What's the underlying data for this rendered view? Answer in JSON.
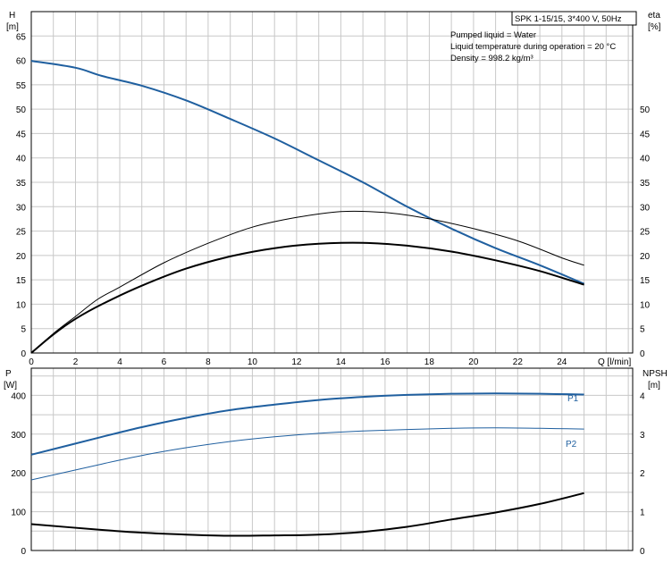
{
  "chart_data": [
    {
      "type": "line",
      "title": "SPK 1-15/15, 3*400 V, 50Hz",
      "info_lines": [
        "Pumped liquid = Water",
        "Liquid temperature during operation = 20 °C",
        "Density = 998.2 kg/m³"
      ],
      "xlabel": "Q [l/min]",
      "ylabel_left": "H",
      "ylabel_left_unit": "[m]",
      "ylabel_right": "eta",
      "ylabel_right_unit": "[%]",
      "xlim": [
        0,
        27.2
      ],
      "ylim": [
        0,
        70
      ],
      "x_ticks": [
        "0",
        "2",
        "4",
        "6",
        "8",
        "10",
        "12",
        "14",
        "16",
        "18",
        "20",
        "22",
        "24"
      ],
      "y_ticks_left": [
        "0",
        "5",
        "10",
        "15",
        "20",
        "25",
        "30",
        "35",
        "40",
        "45",
        "50",
        "55",
        "60",
        "65"
      ],
      "y_ticks_right": [
        "0",
        "5",
        "10",
        "15",
        "20",
        "25",
        "30",
        "35",
        "40",
        "45",
        "50"
      ],
      "grid": true,
      "series": [
        {
          "axis": "left",
          "color": "#1f5f9f",
          "x": [
            0,
            2,
            3.2,
            5,
            7,
            9,
            11,
            13,
            15,
            17,
            19,
            21,
            23,
            25
          ],
          "y": [
            59.9,
            58.5,
            56.8,
            54.8,
            51.8,
            48.0,
            44.0,
            39.5,
            35.0,
            30.0,
            25.5,
            21.5,
            18.0,
            14.2
          ]
        },
        {
          "axis": "right",
          "color": "#000000",
          "x": [
            0,
            1,
            2,
            3,
            4,
            6,
            8,
            10,
            12,
            14,
            16,
            18,
            20,
            22,
            24,
            25
          ],
          "y": [
            0,
            4.0,
            7.5,
            11.0,
            13.5,
            18.5,
            22.5,
            25.8,
            27.8,
            29.0,
            28.8,
            27.5,
            25.5,
            23.0,
            19.5,
            18.0
          ]
        },
        {
          "axis": "right",
          "color": "#000000",
          "x": [
            0,
            1,
            2,
            3.2,
            5,
            7,
            9,
            11,
            13,
            15,
            17,
            19,
            21,
            23,
            25
          ],
          "y": [
            0,
            3.8,
            7.0,
            10.0,
            13.8,
            17.3,
            19.8,
            21.5,
            22.4,
            22.6,
            22.0,
            20.8,
            19.0,
            16.8,
            14.0
          ]
        }
      ]
    },
    {
      "type": "line",
      "ylabel_left": "P",
      "ylabel_left_unit": "[W]",
      "ylabel_right": "NPSH",
      "ylabel_right_unit": "[m]",
      "xlim": [
        0,
        27.2
      ],
      "ylim": [
        0,
        470
      ],
      "y_ticks_left": [
        "0",
        "100",
        "200",
        "300",
        "400"
      ],
      "y_ticks_right": [
        "0",
        "1",
        "2",
        "3",
        "4"
      ],
      "grid": true,
      "series": [
        {
          "name": "P1",
          "axis": "left",
          "color": "#1f5f9f",
          "x": [
            0,
            3.2,
            5,
            7,
            9,
            11,
            13,
            15,
            17,
            19,
            21,
            23,
            25
          ],
          "y": [
            247,
            293,
            318,
            342,
            362,
            376,
            388,
            396,
            401,
            404,
            405,
            404,
            402
          ]
        },
        {
          "name": "P2",
          "axis": "left",
          "color": "#1f5f9f",
          "x": [
            0,
            3.2,
            5,
            7,
            9,
            11,
            13,
            15,
            17,
            19,
            21,
            23,
            25
          ],
          "y": [
            182,
            223,
            245,
            265,
            281,
            293,
            302,
            308,
            312,
            315,
            316,
            315,
            313
          ]
        },
        {
          "axis": "right",
          "color": "#000000",
          "x": [
            0,
            3.2,
            5,
            7,
            9,
            11,
            13,
            15,
            17,
            19,
            21,
            23,
            25
          ],
          "y": [
            0.68,
            0.53,
            0.46,
            0.41,
            0.38,
            0.39,
            0.41,
            0.48,
            0.61,
            0.8,
            0.98,
            1.2,
            1.48
          ]
        }
      ]
    }
  ]
}
